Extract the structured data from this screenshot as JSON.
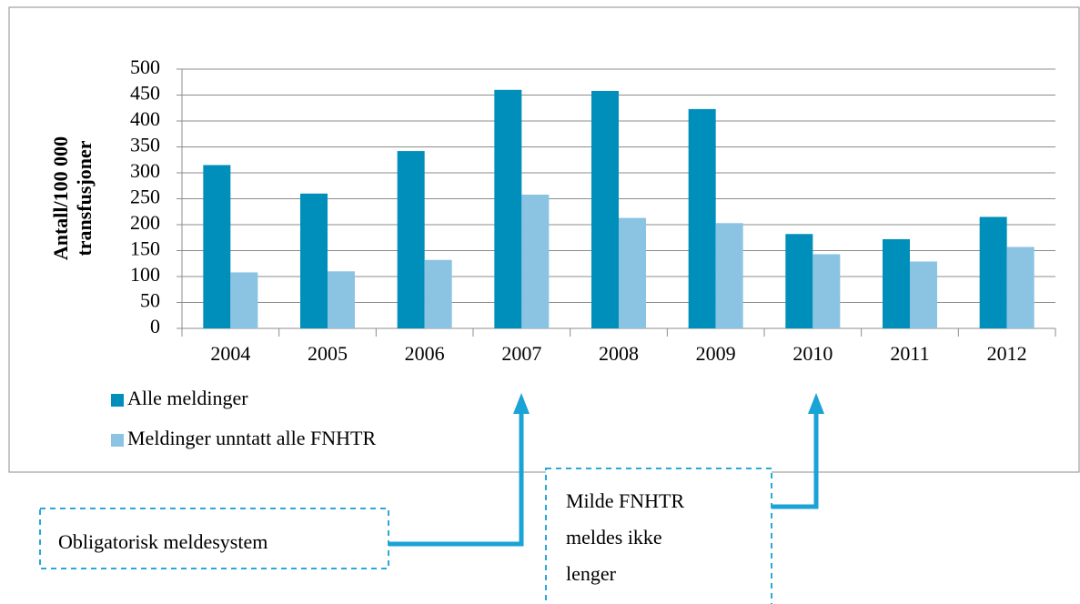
{
  "chart_data": {
    "type": "bar",
    "y_label_lines": [
      "Antall/100 000",
      "transfusjoner"
    ],
    "categories": [
      "2004",
      "2005",
      "2006",
      "2007",
      "2008",
      "2009",
      "2010",
      "2011",
      "2012"
    ],
    "series": [
      {
        "name": "Alle meldinger",
        "color": "#008fba",
        "values": [
          315,
          260,
          342,
          460,
          458,
          423,
          182,
          172,
          215
        ]
      },
      {
        "name": "Meldinger unntatt alle FNHTR",
        "color": "#8bc3e3",
        "values": [
          108,
          110,
          132,
          258,
          213,
          203,
          143,
          129,
          157
        ]
      }
    ],
    "ylim": [
      0,
      500
    ],
    "yticks": [
      0,
      50,
      100,
      150,
      200,
      250,
      300,
      350,
      400,
      450,
      500
    ],
    "grid": true,
    "annotations": [
      {
        "lines": [
          "Obligatorisk meldesystem"
        ]
      },
      {
        "lines": [
          "Milde FNHTR",
          "meldes ikke",
          "lenger"
        ]
      }
    ]
  }
}
